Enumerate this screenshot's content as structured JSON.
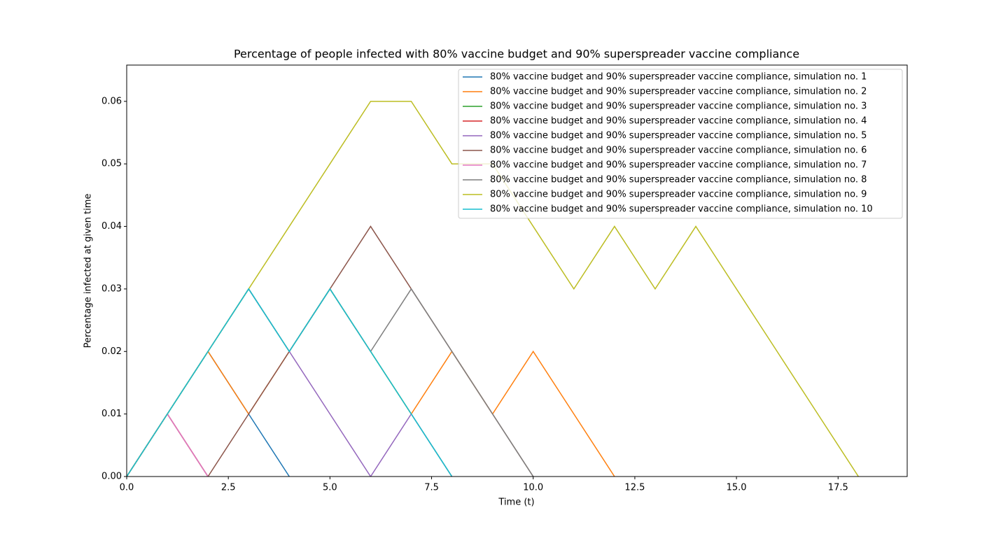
{
  "chart_data": {
    "type": "line",
    "title": "Percentage of people infected with 80% vaccine budget and 90% superspreader vaccine compliance",
    "x_label": "Time (t)",
    "y_label": "Percentage infected at given time",
    "xlim": [
      0,
      19.2
    ],
    "ylim": [
      0,
      0.0658
    ],
    "xticks": [
      {
        "value": 0,
        "label": "0.0"
      },
      {
        "value": 2.5,
        "label": "2.5"
      },
      {
        "value": 5,
        "label": "5.0"
      },
      {
        "value": 7.5,
        "label": "7.5"
      },
      {
        "value": 10,
        "label": "10.0"
      },
      {
        "value": 12.5,
        "label": "12.5"
      },
      {
        "value": 15,
        "label": "15.0"
      },
      {
        "value": 17.5,
        "label": "17.5"
      }
    ],
    "yticks": [
      {
        "value": 0,
        "label": "0.00"
      },
      {
        "value": 0.01,
        "label": "0.01"
      },
      {
        "value": 0.02,
        "label": "0.02"
      },
      {
        "value": 0.03,
        "label": "0.03"
      },
      {
        "value": 0.04,
        "label": "0.04"
      },
      {
        "value": 0.05,
        "label": "0.05"
      },
      {
        "value": 0.06,
        "label": "0.06"
      }
    ],
    "legend": "upper right",
    "series": [
      {
        "name": "80% vaccine budget and 90% superspreader vaccine compliance, simulation no. 1",
        "color": "#1f77b4",
        "x": [
          0,
          1,
          2,
          3,
          4
        ],
        "values": [
          0,
          0.01,
          0.02,
          0.01,
          0
        ]
      },
      {
        "name": "80% vaccine budget and 90% superspreader vaccine compliance, simulation no. 2",
        "color": "#ff7f0e",
        "x": [
          0,
          1,
          2,
          3,
          4,
          5,
          6,
          7,
          8,
          9,
          10,
          11,
          12
        ],
        "values": [
          0,
          0.01,
          0.02,
          0.01,
          0.02,
          0.03,
          0.02,
          0.01,
          0.02,
          0.01,
          0.02,
          0.01,
          0
        ]
      },
      {
        "name": "80% vaccine budget and 90% superspreader vaccine compliance, simulation no. 3",
        "color": "#2ca02c",
        "x": [
          0,
          1,
          2,
          3,
          4,
          5,
          6,
          7,
          8
        ],
        "values": [
          0,
          0.01,
          0.02,
          0.03,
          0.02,
          0.03,
          0.02,
          0.01,
          0
        ]
      },
      {
        "name": "80% vaccine budget and 90% superspreader vaccine compliance, simulation no. 4",
        "color": "#d62728",
        "x": [
          0,
          1,
          2
        ],
        "values": [
          0,
          0.01,
          0
        ]
      },
      {
        "name": "80% vaccine budget and 90% superspreader vaccine compliance, simulation no. 5",
        "color": "#9467bd",
        "x": [
          0,
          1,
          2,
          3,
          4,
          5,
          6,
          7,
          8
        ],
        "values": [
          0,
          0.01,
          0.02,
          0.03,
          0.02,
          0.01,
          0,
          0.01,
          0
        ]
      },
      {
        "name": "80% vaccine budget and 90% superspreader vaccine compliance, simulation no. 6",
        "color": "#8c564b",
        "x": [
          0,
          1,
          2,
          3,
          4,
          5,
          6,
          7,
          8,
          9,
          10
        ],
        "values": [
          0,
          0.01,
          0,
          0.01,
          0.02,
          0.03,
          0.04,
          0.03,
          0.02,
          0.01,
          0
        ]
      },
      {
        "name": "80% vaccine budget and 90% superspreader vaccine compliance, simulation no. 7",
        "color": "#e377c2",
        "x": [
          0,
          1,
          2
        ],
        "values": [
          0,
          0.01,
          0
        ]
      },
      {
        "name": "80% vaccine budget and 90% superspreader vaccine compliance, simulation no. 8",
        "color": "#7f7f7f",
        "x": [
          0,
          1,
          2,
          3,
          4,
          5,
          6,
          7,
          8,
          9,
          10
        ],
        "values": [
          0,
          0.01,
          0.02,
          0.03,
          0.02,
          0.03,
          0.02,
          0.03,
          0.02,
          0.01,
          0
        ]
      },
      {
        "name": "80% vaccine budget and 90% superspreader vaccine compliance, simulation no. 9",
        "color": "#bcbd22",
        "x": [
          0,
          1,
          2,
          3,
          4,
          5,
          6,
          7,
          8,
          9,
          10,
          11,
          12,
          13,
          14,
          15,
          16,
          17,
          18
        ],
        "values": [
          0,
          0.01,
          0.02,
          0.03,
          0.04,
          0.05,
          0.06,
          0.06,
          0.05,
          0.05,
          0.04,
          0.03,
          0.04,
          0.03,
          0.04,
          0.03,
          0.02,
          0.01,
          0
        ]
      },
      {
        "name": "80% vaccine budget and 90% superspreader vaccine compliance, simulation no. 10",
        "color": "#17becf",
        "x": [
          0,
          1,
          2,
          3,
          4,
          5,
          6,
          7,
          8
        ],
        "values": [
          0,
          0.01,
          0.02,
          0.03,
          0.02,
          0.03,
          0.02,
          0.01,
          0
        ]
      }
    ]
  }
}
